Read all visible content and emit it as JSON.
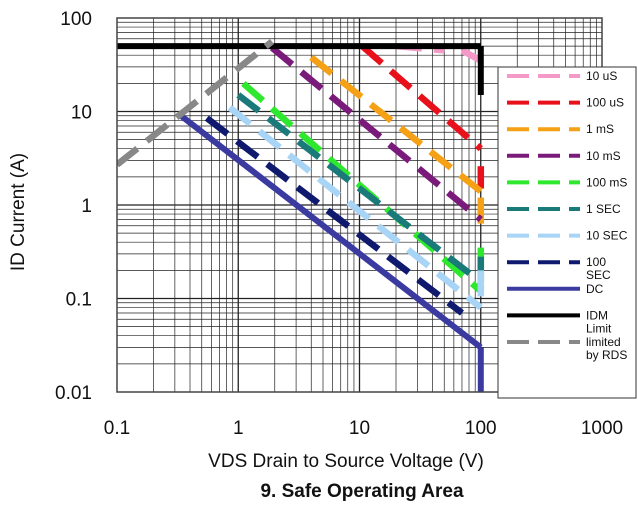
{
  "chart_data": {
    "type": "line",
    "title": "9. Safe Operating Area",
    "xlabel": "VDS Drain to Source Voltage (V)",
    "ylabel": "ID Current (A)",
    "xscale": "log",
    "yscale": "log",
    "xlim": [
      0.1,
      1000
    ],
    "ylim": [
      0.01,
      100
    ],
    "grid": true,
    "legend_position": "right",
    "x_tick_labels": [
      "0.1",
      "1",
      "10",
      "100",
      "1000"
    ],
    "y_tick_labels": [
      "100",
      "10",
      "1",
      "0.1",
      "0.01"
    ],
    "series": [
      {
        "name": "10 uS",
        "color": "#f59ac8",
        "dash": "long",
        "segments": [
          {
            "x": [
              20,
              50
            ],
            "y": [
              50,
              45
            ]
          },
          {
            "x": [
              70,
              100
            ],
            "y": [
              45,
              35
            ]
          }
        ]
      },
      {
        "name": "100 uS",
        "color": "#e8101a",
        "dash": "long",
        "segments": [
          {
            "x": [
              10.5,
              100
            ],
            "y": [
              50,
              4
            ]
          },
          {
            "x": [
              100,
              100
            ],
            "y": [
              2.6,
              1.5
            ]
          }
        ]
      },
      {
        "name": "1 mS",
        "color": "#f5a015",
        "dash": "long",
        "segments": [
          {
            "x": [
              4,
              100
            ],
            "y": [
              38,
              1.4
            ]
          },
          {
            "x": [
              100,
              100
            ],
            "y": [
              1.2,
              0.6
            ]
          }
        ]
      },
      {
        "name": "10 mS",
        "color": "#7a1a7a",
        "dash": "long",
        "segments": [
          {
            "x": [
              1.9,
              100
            ],
            "y": [
              48,
              0.7
            ]
          }
        ]
      },
      {
        "name": "100 mS",
        "color": "#2ee82e",
        "dash": "long",
        "segments": [
          {
            "x": [
              1.1,
              100
            ],
            "y": [
              20,
              0.12
            ]
          },
          {
            "x": [
              100,
              100
            ],
            "y": [
              0.35,
              0.12
            ]
          }
        ]
      },
      {
        "name": "1 SEC",
        "color": "#1a7a7a",
        "dash": "long",
        "segments": [
          {
            "x": [
              1.0,
              100
            ],
            "y": [
              15,
              0.15
            ]
          },
          {
            "x": [
              100,
              100
            ],
            "y": [
              0.28,
              0.15
            ]
          }
        ]
      },
      {
        "name": "10 SEC",
        "color": "#a8d4f5",
        "dash": "long",
        "segments": [
          {
            "x": [
              0.85,
              100
            ],
            "y": [
              11,
              0.08
            ]
          },
          {
            "x": [
              100,
              100
            ],
            "y": [
              0.2,
              0.08
            ]
          }
        ]
      },
      {
        "name": "100\nSEC",
        "color": "#0f1a6e",
        "dash": "long",
        "segments": [
          {
            "x": [
              0.55,
              70
            ],
            "y": [
              8.5,
              0.07
            ]
          }
        ]
      },
      {
        "name": "DC",
        "color": "#3a3aa0",
        "dash": "solid",
        "segments": [
          {
            "x": [
              0.32,
              100
            ],
            "y": [
              9.5,
              0.03
            ]
          },
          {
            "x": [
              100,
              100
            ],
            "y": [
              0.03,
              0.01
            ]
          }
        ]
      },
      {
        "name": "IDM\nLimit",
        "color": "#000000",
        "dash": "solid",
        "segments": [
          {
            "x": [
              0.1,
              100
            ],
            "y": [
              50,
              50
            ]
          },
          {
            "x": [
              100,
              100
            ],
            "y": [
              50,
              15
            ]
          }
        ]
      },
      {
        "name": "limited\nby RDS",
        "color": "#888888",
        "dash": "long",
        "segments": [
          {
            "x": [
              0.1,
              1.9
            ],
            "y": [
              2.7,
              56
            ]
          }
        ]
      }
    ]
  }
}
